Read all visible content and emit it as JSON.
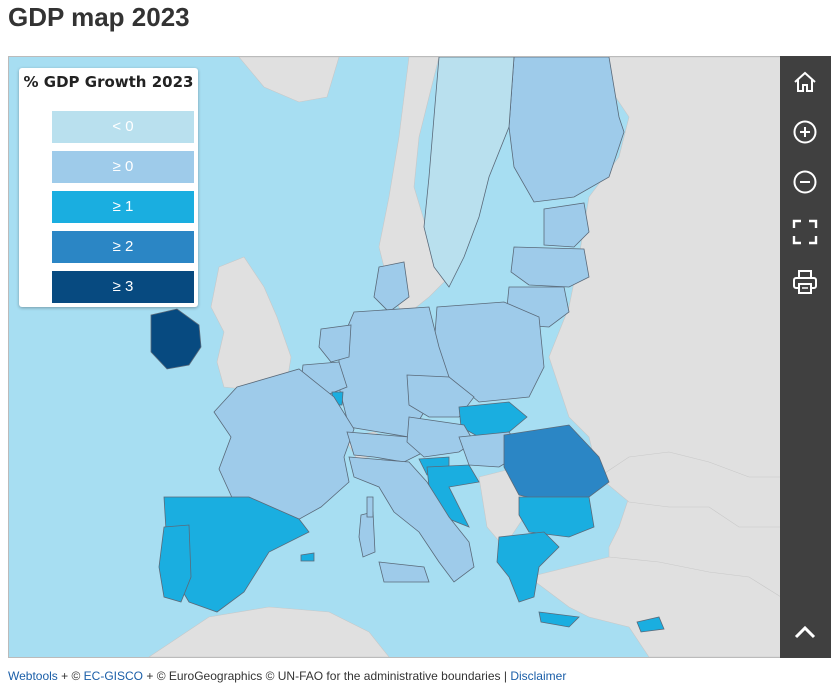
{
  "title": "GDP map 2023",
  "legend": {
    "title": "% GDP Growth 2023",
    "items": [
      {
        "label": "< 0",
        "color": "#b9e0ee"
      },
      {
        "label": "≥ 0",
        "color": "#9ecbea"
      },
      {
        "label": "≥ 1",
        "color": "#1aaee0"
      },
      {
        "label": "≥ 2",
        "color": "#2b86c5"
      },
      {
        "label": "≥ 3",
        "color": "#074a80"
      }
    ]
  },
  "toolbar": {
    "tools": [
      {
        "name": "home",
        "icon": "home-icon"
      },
      {
        "name": "zoom-in",
        "icon": "zoom-in-icon"
      },
      {
        "name": "zoom-out",
        "icon": "zoom-out-icon"
      },
      {
        "name": "fullscreen",
        "icon": "fullscreen-icon"
      },
      {
        "name": "print",
        "icon": "printer-icon"
      },
      {
        "name": "collapse",
        "icon": "chevron-up-icon"
      }
    ]
  },
  "footer": {
    "link1": "Webtools",
    "text1": " + © ",
    "link2": "EC-GISCO",
    "text2": " + © EuroGeographics © UN-FAO for the administrative boundaries | ",
    "link3": "Disclaimer"
  },
  "colors": {
    "sea": "#a7def2",
    "non_eu": "#e0e0e0",
    "lt0": "#b9e0ee",
    "ge0": "#9ecbea",
    "ge1": "#1aaee0",
    "ge2": "#2b86c5",
    "ge3": "#074a80",
    "toolbar": "#404040"
  }
}
